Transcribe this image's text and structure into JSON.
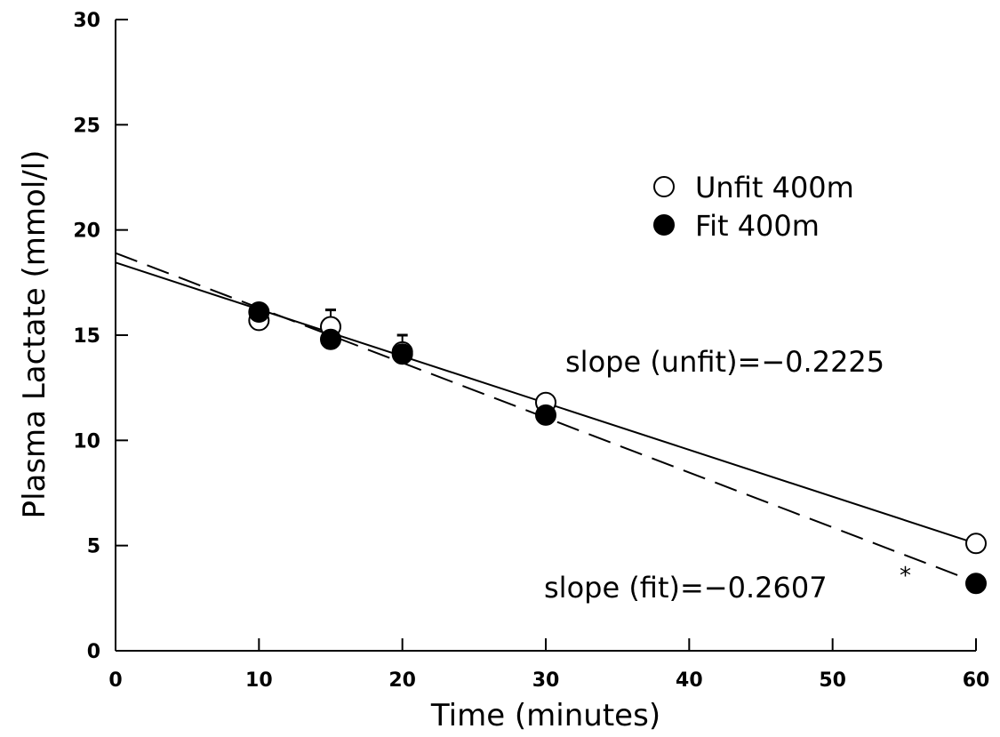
{
  "chart_data": {
    "type": "scatter",
    "title": "",
    "xlabel": "Time (minutes)",
    "ylabel": "Plasma Lactate (mmol/l)",
    "xlim": [
      0,
      60
    ],
    "ylim": [
      0,
      30
    ],
    "xticks": [
      0,
      10,
      20,
      30,
      40,
      50,
      60
    ],
    "yticks": [
      0,
      5,
      10,
      15,
      20,
      25,
      30
    ],
    "grid": false,
    "legend_position": "upper-right",
    "series": [
      {
        "name": "Unfit 400m",
        "marker": "open-circle",
        "x": [
          10,
          15,
          20,
          30,
          60
        ],
        "y": [
          15.7,
          15.4,
          14.2,
          11.8,
          5.1
        ],
        "error_upper": [
          null,
          0.8,
          0.8,
          null,
          null
        ],
        "fit": {
          "intercept": 18.45,
          "slope": -0.2225,
          "style": "solid"
        }
      },
      {
        "name": "Fit 400m",
        "marker": "filled-circle",
        "x": [
          10,
          15,
          20,
          30,
          60
        ],
        "y": [
          16.1,
          14.8,
          14.1,
          11.2,
          3.2
        ],
        "error_upper": [
          null,
          null,
          null,
          null,
          null
        ],
        "fit": {
          "intercept": 18.9,
          "slope": -0.2607,
          "style": "dashed"
        }
      }
    ],
    "annotations": [
      {
        "text": "slope (unfit)=−0.2225"
      },
      {
        "text": "slope (fit)=−0.2607",
        "superscript": "*"
      }
    ]
  }
}
